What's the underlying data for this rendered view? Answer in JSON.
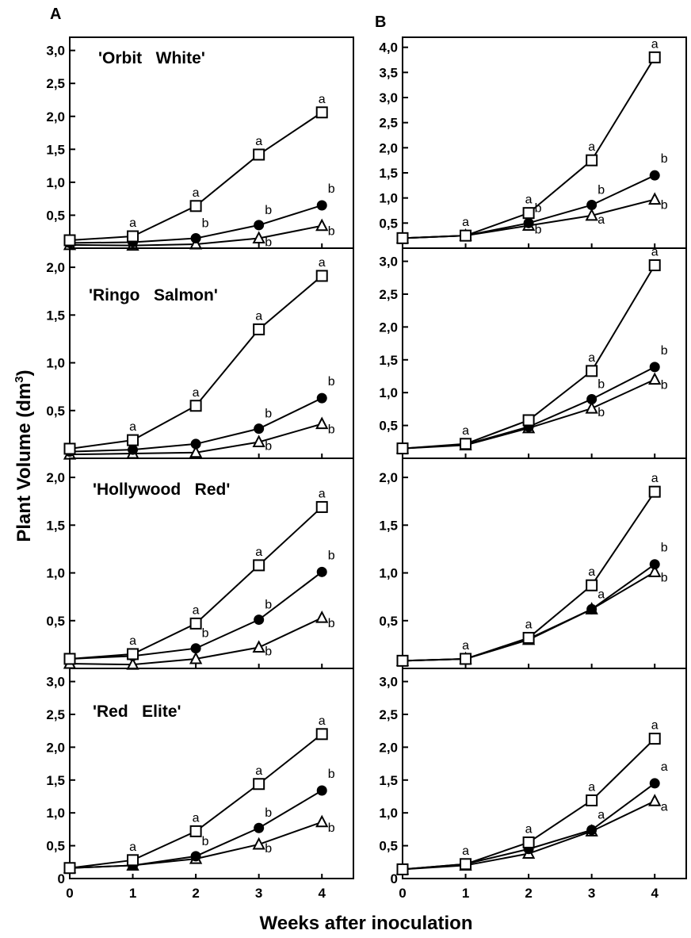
{
  "figure": {
    "ylabel": "Plant Volume (dm",
    "ylabel_sup": "3",
    "ylabel_close": ")",
    "xlabel": "Weeks after inoculation",
    "columns": [
      {
        "letter": "A"
      },
      {
        "letter": "B"
      }
    ],
    "rows": [
      {
        "cultivar": "'Orbit   White'"
      },
      {
        "cultivar": "'Ringo   Salmon'"
      },
      {
        "cultivar": "'Hollywood   Red'"
      },
      {
        "cultivar": "'Red   Elite'"
      }
    ]
  },
  "chart_data": [
    {
      "type": "line",
      "panel": "A-1",
      "x": [
        0,
        1,
        2,
        3,
        4
      ],
      "xlim": [
        0,
        4.5
      ],
      "ylim": [
        0,
        3.2
      ],
      "yticks": [
        "3,0",
        "2,5",
        "2,0",
        "1,5",
        "1,0",
        "0,5"
      ],
      "ytick_values": [
        3.0,
        2.5,
        2.0,
        1.5,
        1.0,
        0.5
      ],
      "xticks": [],
      "series": [
        {
          "marker": "open-square",
          "values": [
            0.12,
            0.18,
            0.64,
            1.42,
            2.06
          ],
          "labels": [
            "",
            "a",
            "a",
            "a",
            "a"
          ]
        },
        {
          "marker": "filled-circle",
          "values": [
            0.08,
            0.09,
            0.15,
            0.35,
            0.65
          ],
          "labels": [
            "",
            "",
            "b",
            "b",
            "b"
          ]
        },
        {
          "marker": "open-triangle",
          "values": [
            0.05,
            0.04,
            0.06,
            0.15,
            0.34
          ],
          "labels": [
            "",
            "",
            "",
            "b",
            "b"
          ]
        }
      ]
    },
    {
      "type": "line",
      "panel": "A-2",
      "x": [
        0,
        1,
        2,
        3,
        4
      ],
      "xlim": [
        0,
        4.5
      ],
      "ylim": [
        0,
        2.2
      ],
      "yticks": [
        "2,0",
        "1,5",
        "1,0",
        "0,5"
      ],
      "ytick_values": [
        2.0,
        1.5,
        1.0,
        0.5
      ],
      "xticks": [],
      "series": [
        {
          "marker": "open-square",
          "values": [
            0.1,
            0.19,
            0.55,
            1.35,
            1.91
          ],
          "labels": [
            "",
            "a",
            "a",
            "a",
            "a"
          ]
        },
        {
          "marker": "filled-circle",
          "values": [
            0.07,
            0.09,
            0.15,
            0.31,
            0.63
          ],
          "labels": [
            "",
            "",
            "",
            "b",
            "b"
          ]
        },
        {
          "marker": "open-triangle",
          "values": [
            0.04,
            0.05,
            0.06,
            0.17,
            0.36
          ],
          "labels": [
            "",
            "",
            "",
            "b",
            "b"
          ]
        }
      ]
    },
    {
      "type": "line",
      "panel": "A-3",
      "x": [
        0,
        1,
        2,
        3,
        4
      ],
      "xlim": [
        0,
        4.5
      ],
      "ylim": [
        0,
        2.2
      ],
      "yticks": [
        "2,0",
        "1,5",
        "1,0",
        "0,5"
      ],
      "ytick_values": [
        2.0,
        1.5,
        1.0,
        0.5
      ],
      "xticks": [],
      "series": [
        {
          "marker": "open-square",
          "values": [
            0.1,
            0.15,
            0.47,
            1.08,
            1.69
          ],
          "labels": [
            "",
            "a",
            "a",
            "a",
            "a"
          ]
        },
        {
          "marker": "filled-circle",
          "values": [
            0.1,
            0.13,
            0.21,
            0.51,
            1.01
          ],
          "labels": [
            "",
            "",
            "b",
            "b",
            "b"
          ]
        },
        {
          "marker": "open-triangle",
          "values": [
            0.05,
            0.04,
            0.1,
            0.22,
            0.53
          ],
          "labels": [
            "",
            "",
            "",
            "b",
            "b"
          ]
        }
      ]
    },
    {
      "type": "line",
      "panel": "A-4",
      "x": [
        0,
        1,
        2,
        3,
        4
      ],
      "xlim": [
        0,
        4.5
      ],
      "ylim": [
        0,
        3.2
      ],
      "yticks": [
        "3,0",
        "2,5",
        "2,0",
        "1,5",
        "1,0",
        "0,5",
        "0"
      ],
      "ytick_values": [
        3.0,
        2.5,
        2.0,
        1.5,
        1.0,
        0.5,
        0
      ],
      "xticks": [
        "0",
        "1",
        "2",
        "3",
        "4"
      ],
      "series": [
        {
          "marker": "open-square",
          "values": [
            0.16,
            0.28,
            0.72,
            1.44,
            2.2
          ],
          "labels": [
            "",
            "a",
            "a",
            "a",
            "a"
          ]
        },
        {
          "marker": "filled-circle",
          "values": [
            0.16,
            0.2,
            0.34,
            0.77,
            1.34
          ],
          "labels": [
            "",
            "",
            "b",
            "b",
            "b"
          ]
        },
        {
          "marker": "open-triangle",
          "values": [
            0.16,
            0.2,
            0.3,
            0.52,
            0.86
          ],
          "labels": [
            "",
            "",
            "",
            "b",
            "b"
          ]
        }
      ]
    },
    {
      "type": "line",
      "panel": "B-1",
      "x": [
        0,
        1,
        2,
        3,
        4
      ],
      "xlim": [
        0,
        4.5
      ],
      "ylim": [
        0,
        4.2
      ],
      "yticks": [
        "4,0",
        "3,5",
        "3,0",
        "2,5",
        "2,0",
        "1,5",
        "1,0",
        "0,5"
      ],
      "ytick_values": [
        4.0,
        3.5,
        3.0,
        2.5,
        2.0,
        1.5,
        1.0,
        0.5
      ],
      "xticks": [],
      "series": [
        {
          "marker": "open-square",
          "values": [
            0.2,
            0.25,
            0.7,
            1.75,
            3.8
          ],
          "labels": [
            "",
            "a",
            "a",
            "a",
            "a"
          ]
        },
        {
          "marker": "filled-circle",
          "values": [
            0.2,
            0.25,
            0.5,
            0.86,
            1.45
          ],
          "labels": [
            "",
            "",
            "b",
            "b",
            "b"
          ]
        },
        {
          "marker": "open-triangle",
          "values": [
            0.2,
            0.25,
            0.45,
            0.65,
            0.97
          ],
          "labels": [
            "",
            "",
            "b",
            "a",
            "b"
          ]
        }
      ]
    },
    {
      "type": "line",
      "panel": "B-2",
      "x": [
        0,
        1,
        2,
        3,
        4
      ],
      "xlim": [
        0,
        4.5
      ],
      "ylim": [
        0,
        3.2
      ],
      "yticks": [
        "3,0",
        "2,5",
        "2,0",
        "1,5",
        "1,0",
        "0,5"
      ],
      "ytick_values": [
        3.0,
        2.5,
        2.0,
        1.5,
        1.0,
        0.5
      ],
      "xticks": [],
      "series": [
        {
          "marker": "open-square",
          "values": [
            0.15,
            0.22,
            0.58,
            1.33,
            2.94
          ],
          "labels": [
            "",
            "a",
            "",
            "a",
            "a"
          ]
        },
        {
          "marker": "filled-circle",
          "values": [
            0.15,
            0.21,
            0.48,
            0.9,
            1.39
          ],
          "labels": [
            "",
            "",
            "",
            "b",
            "b"
          ]
        },
        {
          "marker": "open-triangle",
          "values": [
            0.15,
            0.2,
            0.46,
            0.76,
            1.2
          ],
          "labels": [
            "",
            "",
            "",
            "b",
            "b"
          ]
        }
      ]
    },
    {
      "type": "line",
      "panel": "B-3",
      "x": [
        0,
        1,
        2,
        3,
        4
      ],
      "xlim": [
        0,
        4.5
      ],
      "ylim": [
        0,
        2.2
      ],
      "yticks": [
        "2,0",
        "1,5",
        "1,0",
        "0,5"
      ],
      "ytick_values": [
        2.0,
        1.5,
        1.0,
        0.5
      ],
      "xticks": [],
      "series": [
        {
          "marker": "open-square",
          "values": [
            0.08,
            0.1,
            0.32,
            0.87,
            1.85
          ],
          "labels": [
            "",
            "a",
            "a",
            "a",
            "a"
          ]
        },
        {
          "marker": "filled-circle",
          "values": [
            0.08,
            0.1,
            0.31,
            0.62,
            1.09
          ],
          "labels": [
            "",
            "",
            "",
            "a",
            "b"
          ]
        },
        {
          "marker": "open-triangle",
          "values": [
            0.08,
            0.1,
            0.3,
            0.62,
            1.01
          ],
          "labels": [
            "",
            "",
            "",
            "",
            "b"
          ]
        }
      ]
    },
    {
      "type": "line",
      "panel": "B-4",
      "x": [
        0,
        1,
        2,
        3,
        4
      ],
      "xlim": [
        0,
        4.5
      ],
      "ylim": [
        0,
        3.2
      ],
      "yticks": [
        "3,0",
        "2,5",
        "2,0",
        "1,5",
        "1,0",
        "0,5",
        "0"
      ],
      "ytick_values": [
        3.0,
        2.5,
        2.0,
        1.5,
        1.0,
        0.5,
        0
      ],
      "xticks": [
        "0",
        "1",
        "2",
        "3",
        "4"
      ],
      "series": [
        {
          "marker": "open-square",
          "values": [
            0.14,
            0.22,
            0.55,
            1.19,
            2.13
          ],
          "labels": [
            "",
            "a",
            "a",
            "a",
            "a"
          ]
        },
        {
          "marker": "filled-circle",
          "values": [
            0.14,
            0.22,
            0.45,
            0.74,
            1.45
          ],
          "labels": [
            "",
            "",
            "",
            "a",
            "a"
          ]
        },
        {
          "marker": "open-triangle",
          "values": [
            0.14,
            0.2,
            0.38,
            0.72,
            1.18
          ],
          "labels": [
            "",
            "",
            "",
            "",
            "a"
          ]
        }
      ]
    }
  ]
}
